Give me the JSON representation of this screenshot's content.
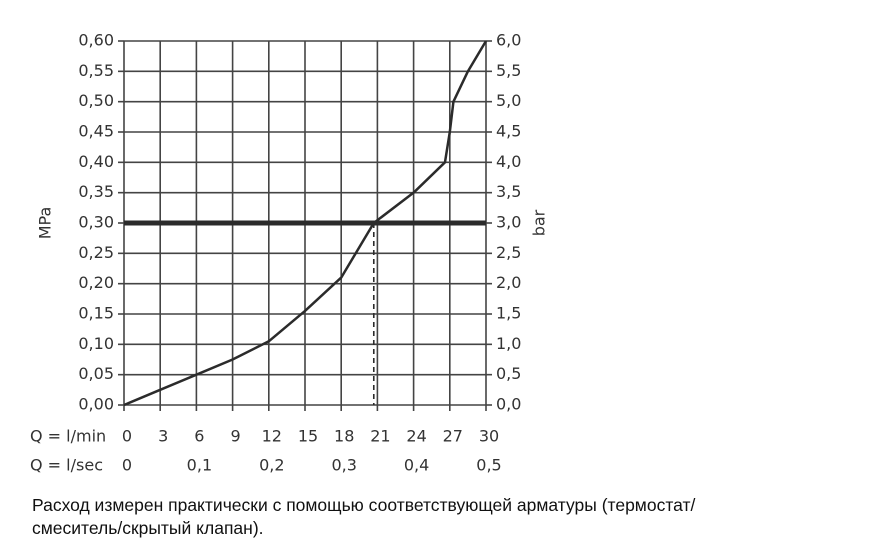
{
  "chart_data": {
    "type": "line",
    "ylabel": "MPa",
    "y2label": "bar",
    "xlabel": "Q = l/min",
    "x2label": "Q = l/sec",
    "x": [
      0,
      3,
      6,
      9,
      12,
      15,
      18,
      20.7,
      24,
      26.6,
      27,
      27.3,
      28.5,
      30
    ],
    "series": [
      {
        "color": "#2b2b2b",
        "values": [
          0,
          0.025,
          0.05,
          0.075,
          0.105,
          0.155,
          0.21,
          0.3,
          0.35,
          0.4,
          0.45,
          0.5,
          0.55,
          0.6
        ]
      }
    ],
    "xlim": [
      0,
      30
    ],
    "xticks": [
      0,
      3,
      6,
      9,
      12,
      15,
      18,
      21,
      24,
      27,
      30
    ],
    "x2lim": [
      0,
      0.5
    ],
    "x2ticks": [
      0,
      {
        "value": 0.1,
        "label": "0,1"
      },
      {
        "value": 0.2,
        "label": "0,2"
      },
      {
        "value": 0.3,
        "label": "0,3"
      },
      {
        "value": 0.4,
        "label": "0,4"
      },
      {
        "value": 0.5,
        "label": "0,5"
      }
    ],
    "ylim": [
      0,
      0.6
    ],
    "yticks": [
      {
        "value": 0,
        "label": "0,00"
      },
      {
        "value": 0.05,
        "label": "0,05"
      },
      {
        "value": 0.1,
        "label": "0,10"
      },
      {
        "value": 0.15,
        "label": "0,15"
      },
      {
        "value": 0.2,
        "label": "0,20"
      },
      {
        "value": 0.25,
        "label": "0,25"
      },
      {
        "value": 0.3,
        "label": "0,30"
      },
      {
        "value": 0.35,
        "label": "0,35"
      },
      {
        "value": 0.4,
        "label": "0,40"
      },
      {
        "value": 0.45,
        "label": "0,45"
      },
      {
        "value": 0.5,
        "label": "0,50"
      },
      {
        "value": 0.55,
        "label": "0,55"
      },
      {
        "value": 0.6,
        "label": "0,60"
      }
    ],
    "y2lim": [
      0,
      6
    ],
    "y2ticks": [
      {
        "value": 0,
        "label": "0,0"
      },
      {
        "value": 0.5,
        "label": "0,5"
      },
      {
        "value": 1,
        "label": "1,0"
      },
      {
        "value": 1.5,
        "label": "1,5"
      },
      {
        "value": 2,
        "label": "2,0"
      },
      {
        "value": 2.5,
        "label": "2,5"
      },
      {
        "value": 3,
        "label": "3,0"
      },
      {
        "value": 3.5,
        "label": "3,5"
      },
      {
        "value": 4,
        "label": "4,0"
      },
      {
        "value": 4.5,
        "label": "4,5"
      },
      {
        "value": 5,
        "label": "5,0"
      },
      {
        "value": 5.5,
        "label": "5,5"
      },
      {
        "value": 6,
        "label": "6,0"
      }
    ],
    "reference_y": 0.3,
    "marker_x": 20.7,
    "grid": true,
    "caption": [
      "Расход измерен практически с помощью соответствующей арматуры (термостат/",
      "смеситель/скрытый клапан)."
    ]
  }
}
